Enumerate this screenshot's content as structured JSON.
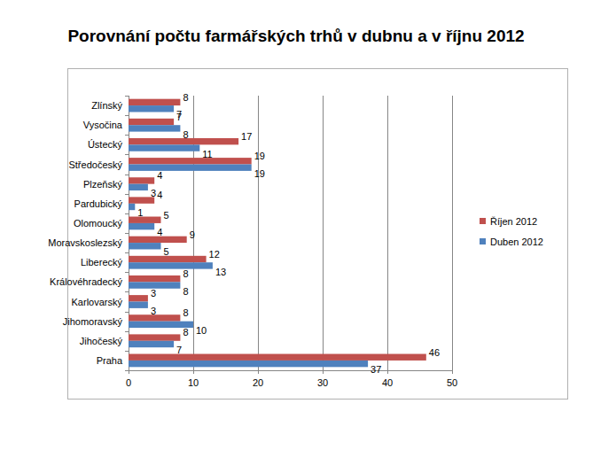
{
  "chart_data": {
    "type": "bar",
    "orientation": "horizontal",
    "title": "Porovnání počtu farmářských trhů v dubnu a v říjnu 2012",
    "categories": [
      "Zlínský",
      "Vysočina",
      "Ústecký",
      "Středočeský",
      "Plzeňský",
      "Pardubický",
      "Olomoucký",
      "Moravskoslezský",
      "Liberecký",
      "Královéhradecký",
      "Karlovarský",
      "Jihomoravský",
      "Jihočeský",
      "Praha"
    ],
    "series": [
      {
        "name": "Říjen 2012",
        "color": "#c0504d",
        "values": [
          8,
          7,
          17,
          19,
          4,
          4,
          5,
          9,
          12,
          8,
          3,
          8,
          8,
          46
        ]
      },
      {
        "name": "Duben 2012",
        "color": "#4f81bd",
        "values": [
          7,
          8,
          11,
          19,
          3,
          1,
          4,
          5,
          13,
          8,
          3,
          10,
          7,
          37
        ]
      }
    ],
    "xlim": [
      0,
      50
    ],
    "xticks": [
      0,
      10,
      20,
      30,
      40,
      50
    ],
    "grid": true,
    "legend": "right",
    "data_labels": true
  }
}
